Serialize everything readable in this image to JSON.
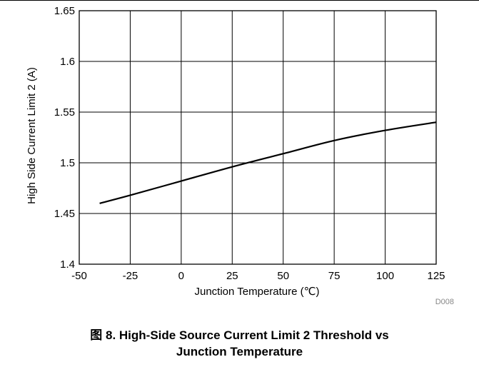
{
  "figure": {
    "code": "D008",
    "caption_line1": "图 8. High-Side Source Current Limit 2 Threshold vs",
    "caption_line2": "Junction Temperature"
  },
  "chart_data": {
    "type": "line",
    "title": "",
    "xlabel": "Junction Temperature (℃)",
    "ylabel": "High Side Current Limit 2 (A)",
    "xlim": [
      -50,
      125
    ],
    "ylim": [
      1.4,
      1.65
    ],
    "xticks": [
      -50,
      -25,
      0,
      25,
      50,
      75,
      100,
      125
    ],
    "xtick_labels": [
      "-50",
      "-25",
      "0",
      "25",
      "50",
      "75",
      "100",
      "125"
    ],
    "yticks": [
      1.4,
      1.45,
      1.5,
      1.55,
      1.6,
      1.65
    ],
    "ytick_labels": [
      "1.4",
      "1.45",
      "1.5",
      "1.55",
      "1.6",
      "1.65"
    ],
    "grid": true,
    "series": [
      {
        "x": [
          -40,
          -25,
          0,
          25,
          50,
          75,
          100,
          125
        ],
        "y": [
          1.46,
          1.468,
          1.482,
          1.496,
          1.509,
          1.522,
          1.532,
          1.54
        ],
        "color": "#000000"
      }
    ]
  }
}
